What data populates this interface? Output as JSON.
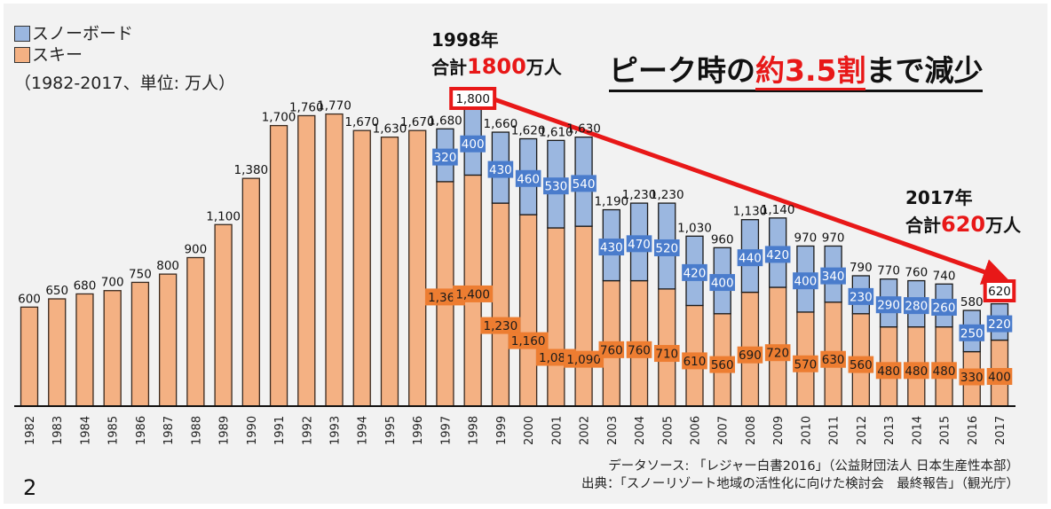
{
  "legend": {
    "items": [
      {
        "label": "スノーボード",
        "color": "#9bb7e0"
      },
      {
        "label": "スキー",
        "color": "#f4b183"
      }
    ],
    "note": "（1982-2017、単位: 万人）"
  },
  "annotations": {
    "peak": {
      "year_label": "1998年",
      "prefix": "合計",
      "value": "1800",
      "suffix": "万人",
      "box_label": "1,800"
    },
    "latest": {
      "year_label": "2017年",
      "prefix": "合計",
      "value": "620",
      "suffix": "万人",
      "box_label": "620"
    }
  },
  "headline": {
    "pre": "ピーク時の",
    "highlight": "約3.5割",
    "post": "まで減少"
  },
  "source": {
    "line1": "データソース: 「レジャー白書2016」（公益財団法人 日本生産性本部）",
    "line2": "出典：「スノーリゾート地域の活性化に向けた検討会　最終報告」（観光庁）"
  },
  "page_number": "2",
  "colors": {
    "ski_fill": "#f4b183",
    "ski_label_bg": "#ed7d31",
    "snowboard_fill": "#9bb7e0",
    "snowboard_label_bg": "#4a7ccc",
    "bar_outline": "#3a2a20",
    "arrow": "#e81818",
    "highlight": "#e81818"
  },
  "chart_data": {
    "type": "bar",
    "stacked": true,
    "title": "ピーク時の約3.5割まで減少",
    "xlabel": "",
    "ylabel": "万人",
    "ylim": [
      0,
      1800
    ],
    "grid": false,
    "legend_position": "top-left",
    "categories": [
      "1982",
      "1983",
      "1984",
      "1985",
      "1986",
      "1987",
      "1988",
      "1989",
      "1990",
      "1991",
      "1992",
      "1993",
      "1994",
      "1995",
      "1996",
      "1997",
      "1998",
      "1999",
      "2000",
      "2001",
      "2002",
      "2003",
      "2004",
      "2005",
      "2006",
      "2007",
      "2008",
      "2009",
      "2010",
      "2011",
      "2012",
      "2013",
      "2014",
      "2015",
      "2016",
      "2017"
    ],
    "series": [
      {
        "name": "スキー",
        "values": [
          600,
          650,
          680,
          700,
          750,
          800,
          900,
          1100,
          1380,
          1700,
          1760,
          1770,
          1670,
          1630,
          1670,
          1360,
          1400,
          1230,
          1160,
          1080,
          1090,
          760,
          760,
          710,
          610,
          560,
          690,
          720,
          570,
          630,
          560,
          480,
          480,
          480,
          330,
          400
        ]
      },
      {
        "name": "スノーボード",
        "values": [
          null,
          null,
          null,
          null,
          null,
          null,
          null,
          null,
          null,
          null,
          null,
          null,
          null,
          null,
          null,
          320,
          400,
          430,
          460,
          530,
          540,
          430,
          470,
          520,
          420,
          400,
          440,
          420,
          400,
          340,
          230,
          290,
          280,
          260,
          250,
          220
        ]
      }
    ],
    "totals": [
      600,
      650,
      680,
      700,
      750,
      800,
      900,
      1100,
      1380,
      1700,
      1760,
      1770,
      1670,
      1630,
      1670,
      1680,
      1800,
      1660,
      1620,
      1610,
      1630,
      1190,
      1230,
      1230,
      1030,
      960,
      1130,
      1140,
      970,
      970,
      790,
      770,
      760,
      740,
      580,
      620
    ],
    "total_labels": [
      "600",
      "650",
      "680",
      "700",
      "750",
      "800",
      "900",
      "1,100",
      "1,380",
      "1,700",
      "1,760",
      "1,770",
      "1,670",
      "1,630",
      "1,670",
      "1,680",
      "1,800",
      "1,660",
      "1,620",
      "1,610",
      "1,630",
      "1,190",
      "1,230",
      "1,230",
      "1,030",
      "960",
      "1,130",
      "1,140",
      "970",
      "970",
      "790",
      "770",
      "760",
      "740",
      "580",
      "620"
    ],
    "ski_labels": [
      "",
      "",
      "",
      "",
      "",
      "",
      "",
      "",
      "",
      "",
      "",
      "",
      "",
      "",
      "",
      "1,360",
      "1,400",
      "1,230",
      "1,160",
      "1,080",
      "1,090",
      "760",
      "760",
      "710",
      "610",
      "560",
      "690",
      "720",
      "570",
      "630",
      "560",
      "480",
      "480",
      "480",
      "330",
      "400"
    ],
    "snowboard_labels": [
      "",
      "",
      "",
      "",
      "",
      "",
      "",
      "",
      "",
      "",
      "",
      "",
      "",
      "",
      "",
      "320",
      "400",
      "430",
      "460",
      "530",
      "540",
      "430",
      "470",
      "520",
      "420",
      "400",
      "440",
      "420",
      "400",
      "340",
      "230",
      "290",
      "280",
      "260",
      "250",
      "220"
    ],
    "annotations": [
      {
        "type": "arrow",
        "from": "1998",
        "to": "2017"
      },
      {
        "type": "highlight-box",
        "category": "1998",
        "text": "1,800"
      },
      {
        "type": "highlight-box",
        "category": "2017",
        "text": "620"
      }
    ]
  }
}
